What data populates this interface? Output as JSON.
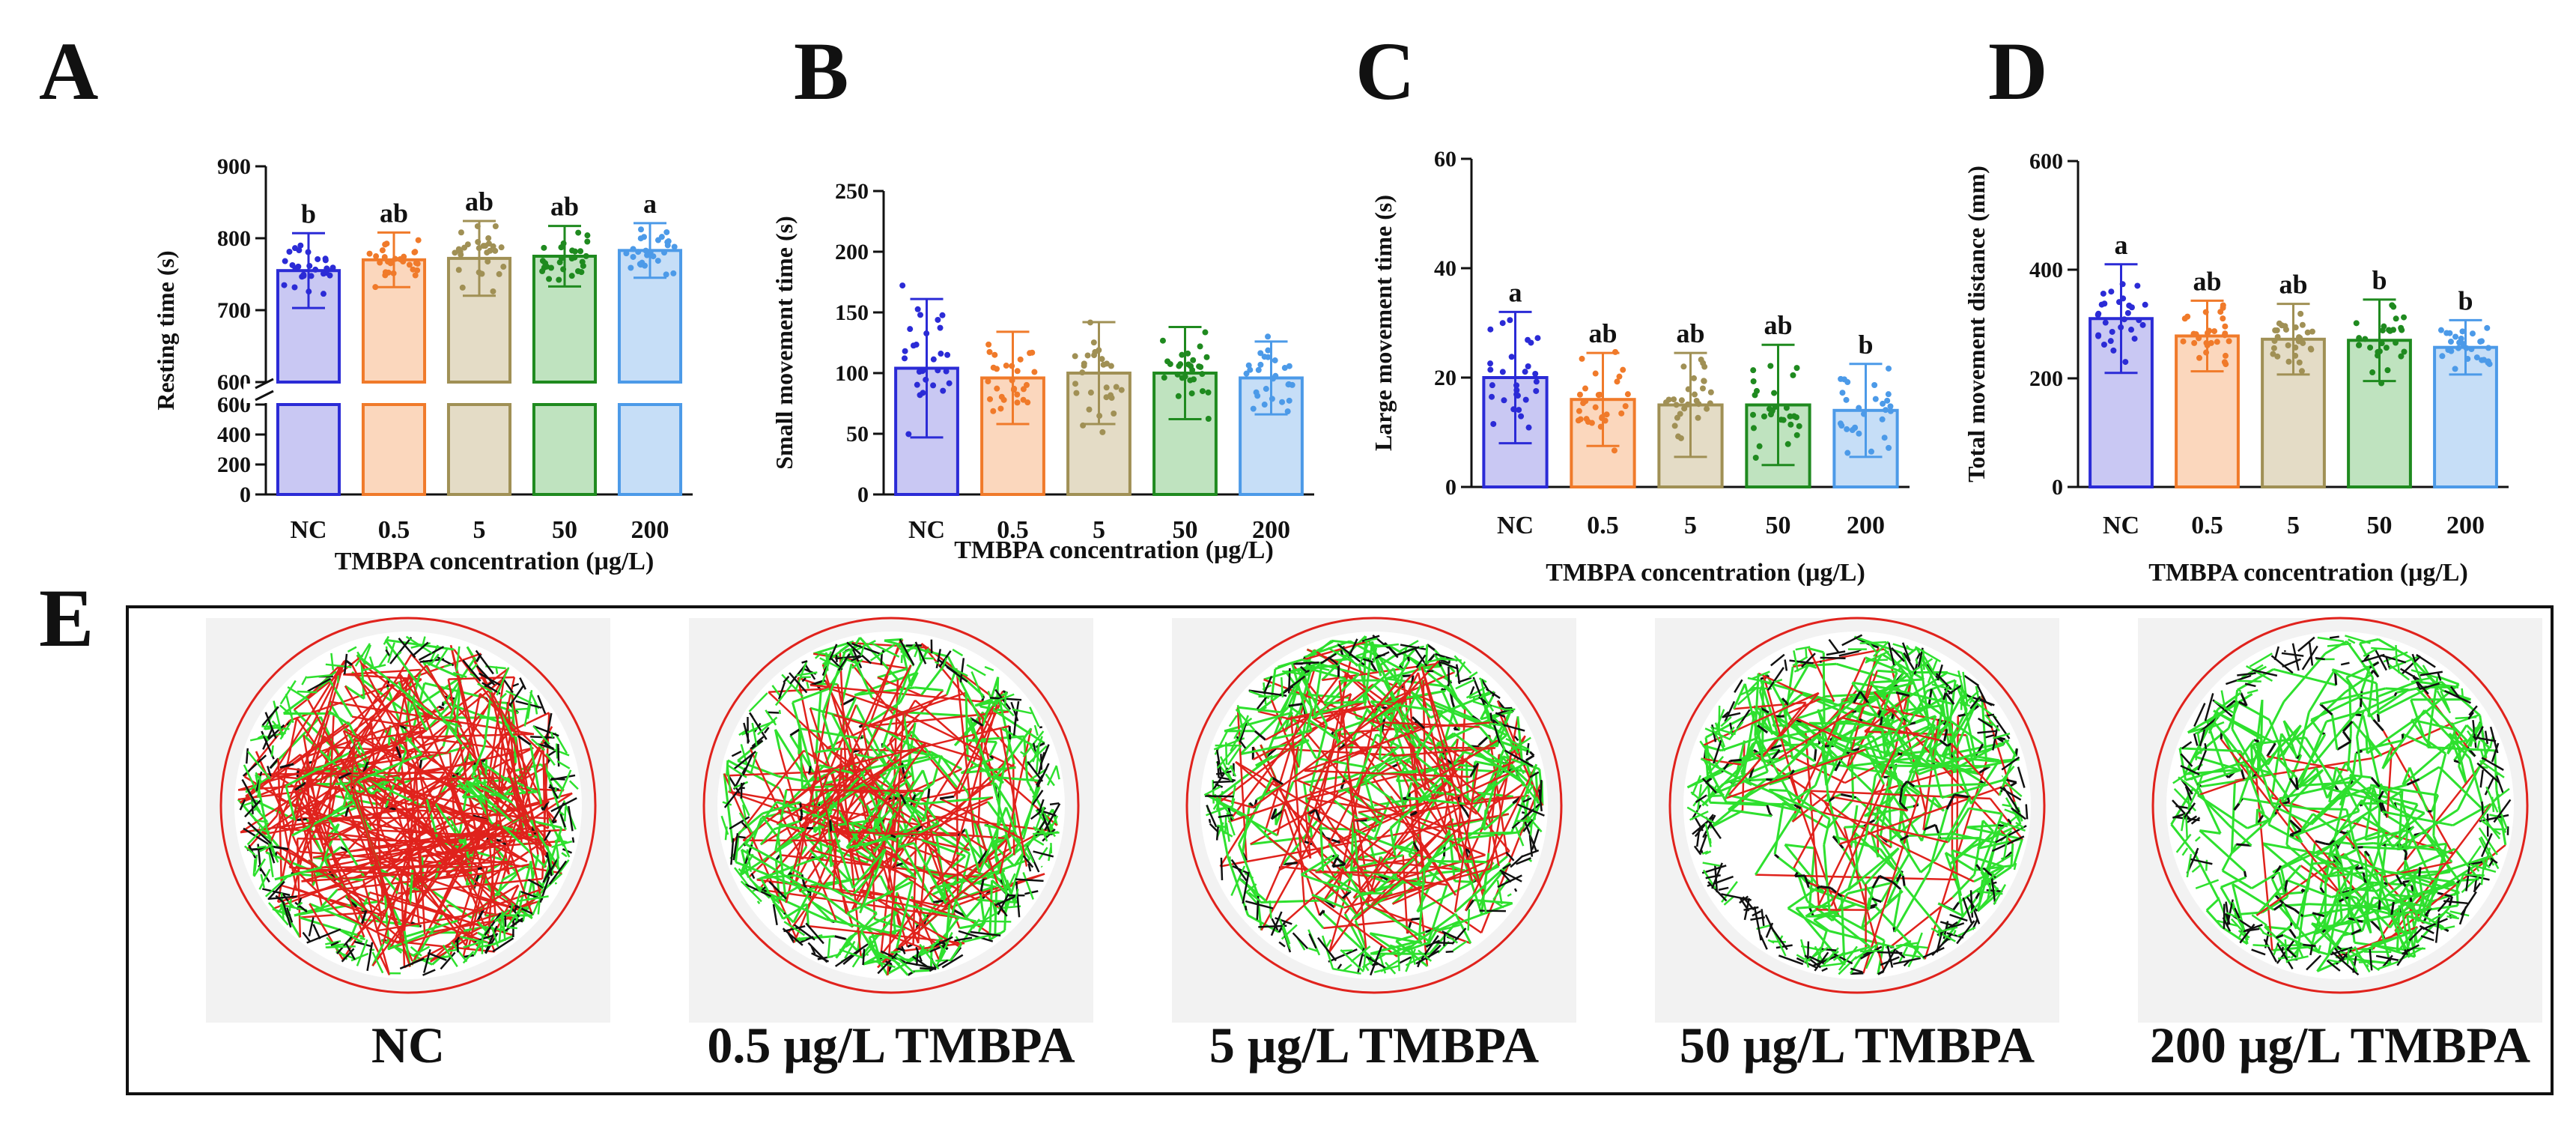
{
  "palette": {
    "NC": "#2b2bd6",
    "0.5": "#f07a2a",
    "5": "#a09055",
    "50": "#1f8a1f",
    "200": "#4c9ae8"
  },
  "fills": {
    "NC": "#c9c8f3",
    "0.5": "#fbd7bd",
    "5": "#e4dcc6",
    "50": "#bfe3bf",
    "200": "#c6def7"
  },
  "panels": {
    "A": {
      "letter": "A"
    },
    "B": {
      "letter": "B"
    },
    "C": {
      "letter": "C"
    },
    "D": {
      "letter": "D"
    },
    "E": {
      "letter": "E"
    }
  },
  "chart_data": [
    {
      "id": "A",
      "type": "bar",
      "categories": [
        "NC",
        "0.5",
        "5",
        "50",
        "200"
      ],
      "values": [
        755,
        770,
        772,
        775,
        783
      ],
      "error": [
        52,
        38,
        52,
        42,
        38
      ],
      "significance": [
        "b",
        "ab",
        "ab",
        "ab",
        "a"
      ],
      "xlabel": "TMBPA concentration (μg/L)",
      "ylabel": "Resting time (s)",
      "axis_break": true,
      "lower_segment": {
        "ylim": [
          0,
          600
        ],
        "ticks": [
          "0",
          "200",
          "400",
          "600"
        ]
      },
      "upper_segment": {
        "ylim": [
          600,
          900
        ],
        "ticks": [
          "600",
          "700",
          "800",
          "900"
        ]
      }
    },
    {
      "id": "B",
      "type": "bar",
      "categories": [
        "NC",
        "0.5",
        "5",
        "50",
        "200"
      ],
      "values": [
        104,
        96,
        100,
        100,
        96
      ],
      "error": [
        57,
        38,
        42,
        38,
        30
      ],
      "significance": [
        "",
        "",
        "",
        "",
        ""
      ],
      "xlabel": "TMBPA concentration (μg/L)",
      "ylabel": "Small movement time (s)",
      "ylim": [
        0,
        250
      ],
      "yticks": [
        "0",
        "50",
        "100",
        "150",
        "200",
        "250"
      ]
    },
    {
      "id": "C",
      "type": "bar",
      "categories": [
        "NC",
        "0.5",
        "5",
        "50",
        "200"
      ],
      "values": [
        20,
        16,
        15,
        15,
        14
      ],
      "error": [
        12,
        8.5,
        9.5,
        11,
        8.5
      ],
      "significance": [
        "a",
        "ab",
        "ab",
        "ab",
        "b"
      ],
      "xlabel": "TMBPA concentration (μg/L)",
      "ylabel": "Large movement time (s)",
      "ylim": [
        0,
        60
      ],
      "yticks": [
        "0",
        "20",
        "40",
        "60"
      ]
    },
    {
      "id": "D",
      "type": "bar",
      "categories": [
        "NC",
        "0.5",
        "5",
        "50",
        "200"
      ],
      "values": [
        310,
        278,
        272,
        270,
        257
      ],
      "error": [
        100,
        65,
        65,
        75,
        50
      ],
      "significance": [
        "a",
        "ab",
        "ab",
        "b",
        "b"
      ],
      "xlabel": "TMBPA concentration (μg/L)",
      "ylabel": "Total movement distance (mm)",
      "ylim": [
        0,
        600
      ],
      "yticks": [
        "0",
        "200",
        "400",
        "600"
      ]
    }
  ],
  "tracks": {
    "items": [
      {
        "label": "NC",
        "red_share": 0.55,
        "green_share": 0.35
      },
      {
        "label": "0.5 μg/L TMBPA",
        "red_share": 0.3,
        "green_share": 0.55
      },
      {
        "label": "5 μg/L TMBPA",
        "red_share": 0.22,
        "green_share": 0.58
      },
      {
        "label": "50 μg/L TMBPA",
        "red_share": 0.1,
        "green_share": 0.68
      },
      {
        "label": "200 μg/L TMBPA",
        "red_share": 0.05,
        "green_share": 0.72
      }
    ],
    "colors": {
      "large": "#e0221c",
      "small": "#2ee02e",
      "rest": "#111111",
      "arena": "#e0221c"
    }
  }
}
